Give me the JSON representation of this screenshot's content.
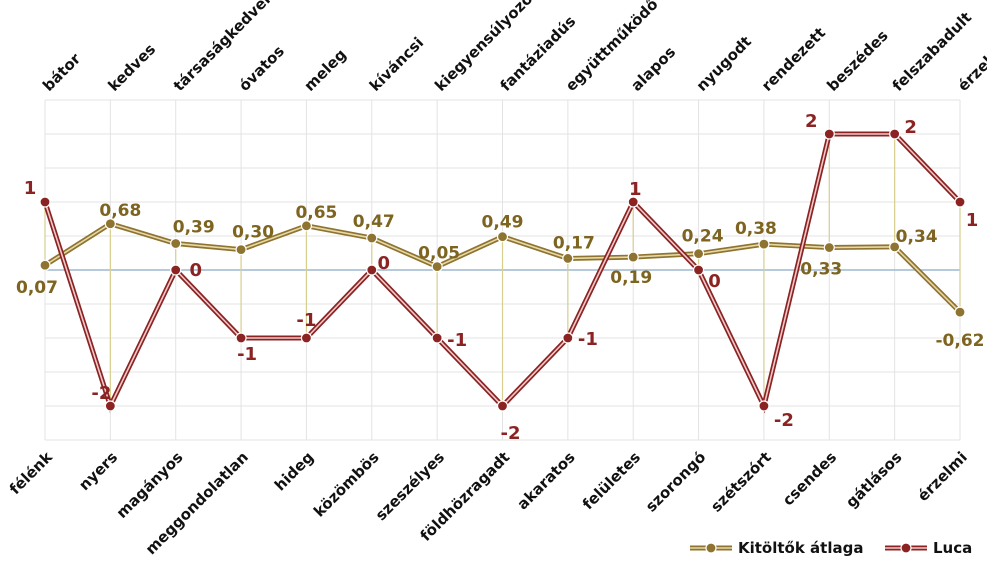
{
  "chart_data": {
    "type": "line",
    "title": "",
    "xlabel": "",
    "ylabel": "",
    "ylim": [
      -2.5,
      2.5
    ],
    "grid": true,
    "legend_position": "bottom-right",
    "top_labels": [
      "bátor",
      "kedves",
      "társaságkedvelő",
      "óvatos",
      "meleg",
      "kíváncsi",
      "kiegyensúlyozott",
      "fantáziadús",
      "együttműködő",
      "alapos",
      "nyugodt",
      "rendezett",
      "beszédes",
      "felszabadult",
      "érzelmi"
    ],
    "bottom_labels": [
      "félénk",
      "nyers",
      "magányos",
      "meggondolatlan",
      "hideg",
      "közömbös",
      "szeszélyes",
      "földhözragadt",
      "akaratos",
      "felületes",
      "szorongó",
      "szétszórt",
      "csendes",
      "gátlásos",
      "érzelmi"
    ],
    "series": [
      {
        "name": "Kitöltők átlaga",
        "color": "#8f7330",
        "values": [
          0.07,
          0.68,
          0.39,
          0.3,
          0.65,
          0.47,
          0.05,
          0.49,
          0.17,
          0.19,
          0.24,
          0.38,
          0.33,
          0.34,
          -0.62
        ],
        "labels": [
          "0,07",
          "0,68",
          "0,39",
          "0,30",
          "0,65",
          "0,47",
          "0,05",
          "0,49",
          "0,17",
          "0,19",
          "0,24",
          "0,38",
          "0,33",
          "0,34",
          "-0,62"
        ]
      },
      {
        "name": "Luca",
        "color": "#8b2323",
        "values": [
          1,
          -2,
          0,
          -1,
          -1,
          0,
          -1,
          -2,
          -1,
          1,
          0,
          -2,
          2,
          2,
          1
        ],
        "labels": [
          "1",
          "-2",
          "0",
          "-1",
          "-1",
          "0",
          "-1",
          "-2",
          "-1",
          "1",
          "0",
          "-2",
          "2",
          "2",
          "1"
        ]
      }
    ]
  }
}
